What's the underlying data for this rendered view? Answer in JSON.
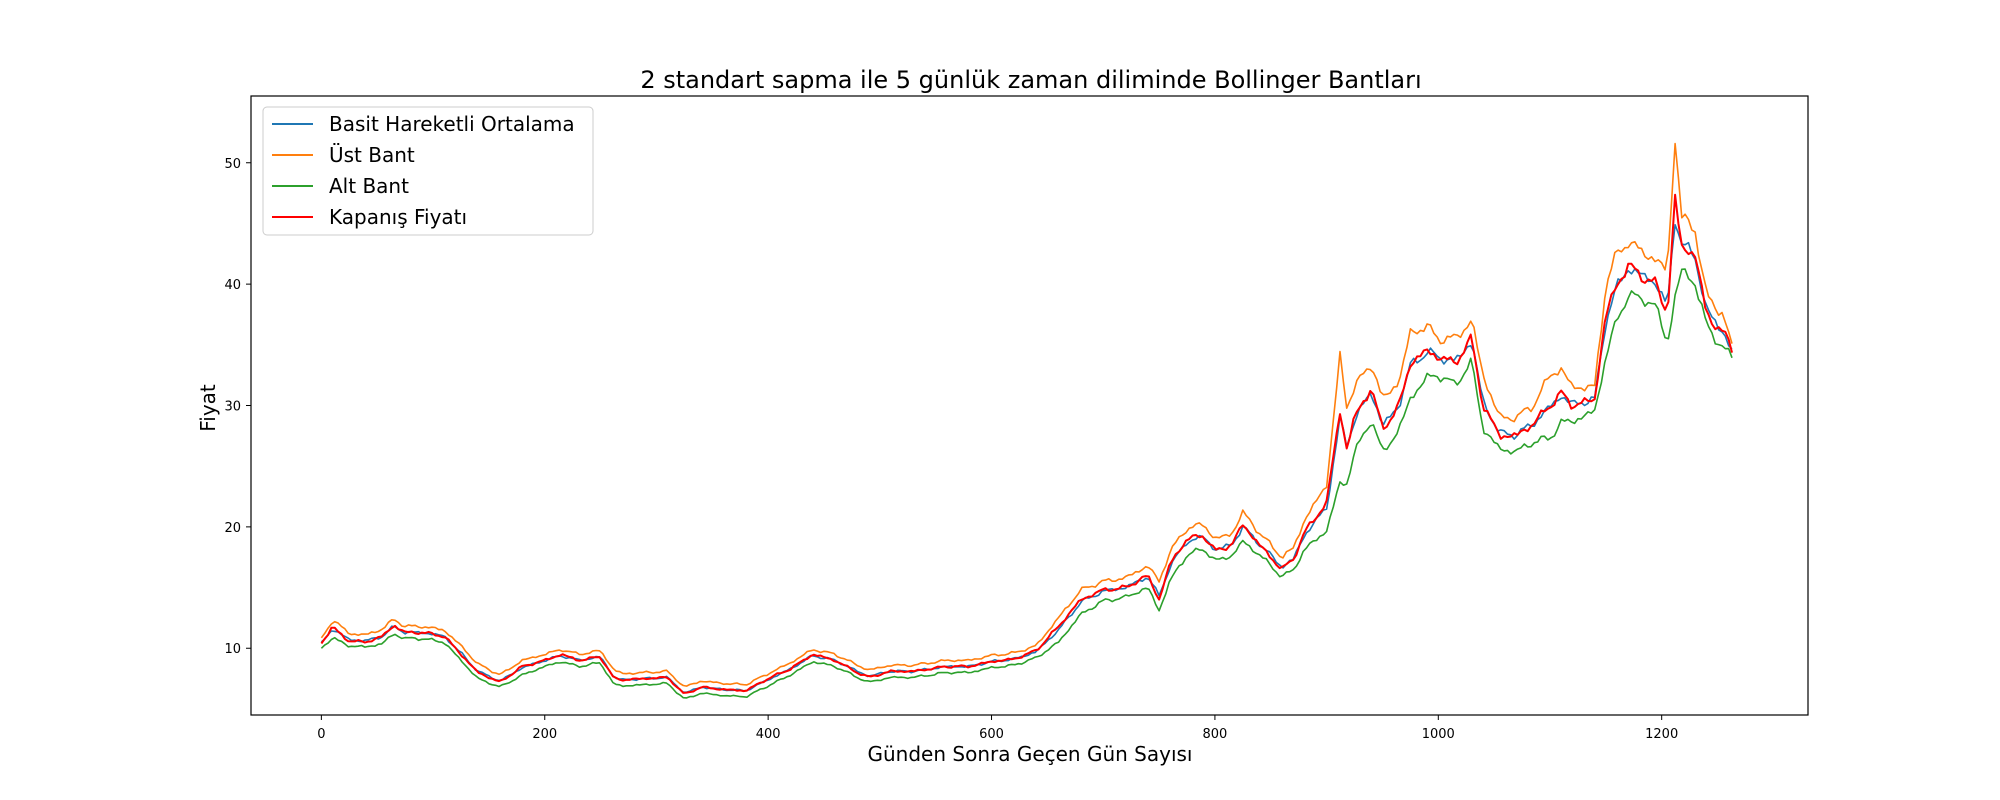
{
  "chart_data": {
    "type": "line",
    "title": "2 standart sapma ile 5 günlük zaman diliminde Bollinger Bantları",
    "xlabel": "Günden Sonra Geçen Gün Sayısı",
    "ylabel": "Fiyat",
    "xlim": [
      -63,
      1331
    ],
    "ylim": [
      4.5,
      55.5
    ],
    "x_ticks": [
      0,
      200,
      400,
      600,
      800,
      1000,
      1200
    ],
    "y_ticks": [
      10,
      20,
      30,
      40,
      50
    ],
    "grid": false,
    "legend_position": "top-left",
    "series_keypoints": {
      "x": [
        0,
        10,
        15,
        25,
        40,
        55,
        65,
        75,
        90,
        110,
        125,
        140,
        160,
        180,
        200,
        215,
        230,
        250,
        262,
        270,
        290,
        310,
        325,
        340,
        360,
        380,
        400,
        420,
        440,
        460,
        480,
        490,
        510,
        530,
        560,
        580,
        600,
        620,
        640,
        660,
        680,
        700,
        720,
        740,
        750,
        760,
        775,
        790,
        800,
        815,
        825,
        840,
        860,
        870,
        880,
        900,
        912,
        918,
        925,
        940,
        950,
        965,
        975,
        990,
        1000,
        1015,
        1030,
        1040,
        1055,
        1070,
        1085,
        1100,
        1110,
        1120,
        1140,
        1150,
        1160,
        1170,
        1185,
        1195,
        1205,
        1212,
        1218,
        1230,
        1240,
        1255,
        1264
      ],
      "close": [
        10.4,
        11.8,
        11.3,
        10.6,
        10.5,
        11.0,
        11.9,
        11.3,
        11.3,
        11.0,
        9.5,
        8.0,
        7.2,
        8.5,
        9.0,
        9.5,
        9.0,
        9.3,
        7.5,
        7.4,
        7.5,
        7.6,
        6.2,
        6.8,
        6.6,
        6.5,
        7.5,
        8.3,
        9.5,
        9.0,
        8.0,
        7.6,
        8.1,
        8.1,
        8.5,
        8.5,
        8.9,
        9.1,
        9.8,
        11.8,
        14.0,
        14.8,
        15.0,
        16.0,
        14.0,
        17.0,
        19.0,
        19.3,
        18.0,
        18.5,
        20.2,
        18.5,
        16.5,
        17.3,
        19.5,
        22.0,
        29.5,
        26.5,
        29.0,
        31.5,
        28.0,
        30.0,
        33.5,
        34.5,
        34.0,
        33.5,
        35.5,
        30.0,
        27.5,
        27.5,
        28.5,
        30.0,
        31.0,
        30.0,
        30.5,
        37.5,
        40.0,
        41.5,
        40.5,
        40.0,
        37.5,
        47.0,
        43.0,
        42.5,
        37.5,
        36.0,
        34.5
      ],
      "sma": [
        10.4,
        11.6,
        11.3,
        10.7,
        10.6,
        11.0,
        11.8,
        11.3,
        11.3,
        11.0,
        9.6,
        8.1,
        7.3,
        8.4,
        9.0,
        9.4,
        9.0,
        9.3,
        7.6,
        7.4,
        7.5,
        7.6,
        6.3,
        6.8,
        6.6,
        6.5,
        7.4,
        8.3,
        9.4,
        9.0,
        8.1,
        7.7,
        8.1,
        8.1,
        8.5,
        8.5,
        8.9,
        9.1,
        9.7,
        11.5,
        13.8,
        14.7,
        15.0,
        15.9,
        14.3,
        16.8,
        18.8,
        19.2,
        18.1,
        18.5,
        20.0,
        18.6,
        16.7,
        17.3,
        19.3,
        21.6,
        28.8,
        26.8,
        28.8,
        31.2,
        28.3,
        30.0,
        33.3,
        34.4,
        34.0,
        33.6,
        35.3,
        30.3,
        27.7,
        27.6,
        28.5,
        29.9,
        30.8,
        30.1,
        30.5,
        37.0,
        39.8,
        41.3,
        40.6,
        40.1,
        38.0,
        45.5,
        43.3,
        42.3,
        37.8,
        36.1,
        34.2
      ],
      "upper": [
        10.8,
        12.3,
        12.0,
        11.2,
        11.1,
        11.6,
        12.4,
        11.8,
        11.8,
        11.5,
        10.2,
        8.7,
        7.8,
        9.0,
        9.5,
        9.9,
        9.5,
        9.8,
        8.2,
        7.9,
        8.0,
        8.1,
        6.8,
        7.3,
        7.1,
        7.0,
        7.9,
        8.8,
        9.9,
        9.5,
        8.6,
        8.2,
        8.6,
        8.6,
        9.0,
        9.0,
        9.4,
        9.6,
        10.2,
        12.5,
        14.8,
        15.5,
        15.8,
        16.8,
        15.5,
        18.0,
        19.9,
        20.2,
        19.0,
        19.4,
        21.2,
        19.5,
        17.5,
        18.2,
        20.5,
        23.5,
        34.0,
        30.0,
        31.5,
        33.5,
        30.5,
        32.0,
        36.0,
        36.5,
        35.5,
        35.5,
        37.0,
        32.5,
        29.0,
        29.0,
        30.0,
        32.5,
        33.0,
        31.5,
        31.5,
        40.0,
        42.5,
        43.5,
        42.5,
        42.0,
        41.0,
        52.0,
        45.5,
        44.5,
        39.0,
        37.5,
        34.5
      ],
      "lower": [
        10.0,
        10.9,
        10.6,
        10.2,
        10.1,
        10.4,
        11.2,
        10.8,
        10.8,
        10.5,
        9.0,
        7.5,
        6.8,
        7.8,
        8.5,
        8.9,
        8.5,
        8.8,
        7.0,
        6.9,
        7.0,
        7.1,
        5.8,
        6.3,
        6.1,
        6.0,
        6.9,
        7.8,
        8.9,
        8.5,
        7.6,
        7.2,
        7.6,
        7.6,
        8.0,
        8.0,
        8.4,
        8.6,
        9.2,
        10.5,
        12.8,
        13.9,
        14.2,
        15.0,
        13.1,
        15.6,
        17.7,
        18.2,
        17.2,
        17.6,
        18.8,
        17.7,
        15.9,
        16.4,
        18.1,
        19.7,
        23.6,
        23.6,
        26.1,
        28.9,
        26.1,
        28.0,
        30.6,
        32.3,
        32.5,
        31.7,
        33.6,
        28.1,
        26.4,
        26.2,
        27.0,
        27.3,
        28.6,
        28.7,
        29.5,
        34.0,
        37.1,
        39.1,
        38.7,
        38.2,
        35.0,
        39.0,
        41.1,
        40.1,
        36.6,
        34.7,
        33.9
      ]
    },
    "series": [
      {
        "name": "Basit Hareketli Ortalama",
        "color": "#1f77b4",
        "key": "sma"
      },
      {
        "name": "Üst Bant",
        "color": "#ff7f0e",
        "key": "upper"
      },
      {
        "name": "Alt Bant",
        "color": "#2ca02c",
        "key": "lower"
      },
      {
        "name": "Kapanış Fiyatı",
        "color": "#ff0000",
        "key": "close"
      }
    ]
  }
}
